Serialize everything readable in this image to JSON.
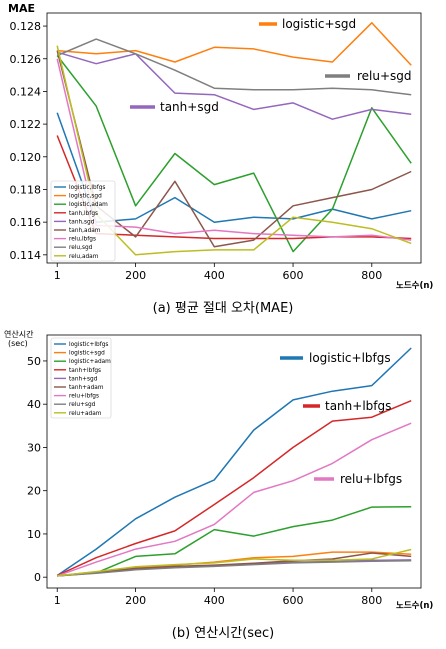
{
  "captions": {
    "a": "(a) 평균 절대 오차(MAE)",
    "b": "(b) 연산시간(sec)"
  },
  "chart_data": [
    {
      "type": "line",
      "ylabel": "MAE",
      "xlabel": "노드수(n)",
      "x": [
        1,
        100,
        200,
        300,
        400,
        500,
        600,
        700,
        800,
        900
      ],
      "xticks": [
        "1",
        "200",
        "400",
        "600",
        "800"
      ],
      "xtick_values": [
        1,
        200,
        400,
        600,
        800
      ],
      "yticks": [
        "0.114",
        "0.116",
        "0.118",
        "0.120",
        "0.122",
        "0.124",
        "0.126",
        "0.128"
      ],
      "ylim": [
        0.1135,
        0.1288
      ],
      "legend_position": "lower-left",
      "series": [
        {
          "name": "logistic,lbfgs",
          "color": "#1f77b4",
          "values": [
            0.1227,
            0.116,
            0.1162,
            0.1175,
            0.116,
            0.1163,
            0.1162,
            0.1168,
            0.1162,
            0.1167
          ]
        },
        {
          "name": "logistic,sgd",
          "color": "#ff7f0e",
          "values": [
            0.1265,
            0.1263,
            0.1265,
            0.1258,
            0.1267,
            0.1266,
            0.1261,
            0.1258,
            0.1282,
            0.1256
          ]
        },
        {
          "name": "logistic,adam",
          "color": "#2ca02c",
          "values": [
            0.1262,
            0.1231,
            0.117,
            0.1202,
            0.1183,
            0.119,
            0.1142,
            0.1168,
            0.123,
            0.1196
          ]
        },
        {
          "name": "tanh,lbfgs",
          "color": "#d62728",
          "values": [
            0.1213,
            0.1153,
            0.1152,
            0.1151,
            0.115,
            0.115,
            0.115,
            0.1151,
            0.1151,
            0.115
          ]
        },
        {
          "name": "tanh,sgd",
          "color": "#9467bd",
          "values": [
            0.1264,
            0.1257,
            0.1263,
            0.1239,
            0.1238,
            0.1229,
            0.1233,
            0.1223,
            0.1229,
            0.1226
          ]
        },
        {
          "name": "tanh,adam",
          "color": "#8c564b",
          "values": [
            0.1265,
            0.117,
            0.1151,
            0.1185,
            0.1145,
            0.1149,
            0.117,
            0.1175,
            0.118,
            0.1191
          ]
        },
        {
          "name": "relu,lbfgs",
          "color": "#e377c2",
          "values": [
            0.126,
            0.1158,
            0.1157,
            0.1153,
            0.1155,
            0.1153,
            0.1152,
            0.1151,
            0.1152,
            0.1149
          ]
        },
        {
          "name": "relu,sgd",
          "color": "#7f7f7f",
          "values": [
            0.1262,
            0.1272,
            0.1263,
            0.1253,
            0.1242,
            0.1241,
            0.1241,
            0.1242,
            0.1241,
            0.1238
          ]
        },
        {
          "name": "relu,adam",
          "color": "#bcbd22",
          "values": [
            0.1268,
            0.1165,
            0.114,
            0.1142,
            0.1143,
            0.1143,
            0.1163,
            0.116,
            0.1156,
            0.1147
          ]
        }
      ],
      "annotations": [
        {
          "text": "logistic+sgd",
          "color": "#ff7f0e"
        },
        {
          "text": "relu+sgd",
          "color": "#7f7f7f"
        },
        {
          "text": "tanh+sgd",
          "color": "#9467bd"
        }
      ]
    },
    {
      "type": "line",
      "ylabel": "연산시간 (sec)",
      "xlabel": "노드수(n)",
      "x": [
        1,
        100,
        200,
        300,
        400,
        500,
        600,
        700,
        800,
        900
      ],
      "xticks": [
        "1",
        "200",
        "400",
        "600",
        "800"
      ],
      "xtick_values": [
        1,
        200,
        400,
        600,
        800
      ],
      "yticks": [
        "0",
        "10",
        "20",
        "30",
        "40",
        "50"
      ],
      "ytick_values": [
        0,
        10,
        20,
        30,
        40,
        50
      ],
      "ylim": [
        -2.5,
        56
      ],
      "legend_position": "top-left",
      "series": [
        {
          "name": "logistic+lbfgs",
          "color": "#1f77b4",
          "values": [
            0.4,
            6.5,
            13.5,
            18.5,
            22.5,
            34,
            41,
            43,
            44.3,
            53
          ]
        },
        {
          "name": "logistic+sgd",
          "color": "#ff7f0e",
          "values": [
            0.3,
            1.2,
            2.2,
            2.8,
            3.5,
            4.5,
            4.8,
            5.8,
            5.8,
            5.3
          ]
        },
        {
          "name": "logistic+adam",
          "color": "#2ca02c",
          "values": [
            0.3,
            1.0,
            4.8,
            5.4,
            11,
            9.5,
            11.7,
            13.2,
            16.2,
            16.3
          ]
        },
        {
          "name": "tanh+lbfgs",
          "color": "#d62728",
          "values": [
            0.4,
            4.5,
            7.8,
            10.7,
            16.8,
            23,
            30,
            36.1,
            37,
            40.8
          ]
        },
        {
          "name": "tanh+sgd",
          "color": "#9467bd",
          "values": [
            0.3,
            1.0,
            1.8,
            2.3,
            2.6,
            3.1,
            3.5,
            3.6,
            3.9,
            4.0
          ]
        },
        {
          "name": "tanh+adam",
          "color": "#8c564b",
          "values": [
            0.3,
            1.2,
            2.0,
            2.5,
            2.8,
            3.2,
            3.8,
            4.2,
            5.6,
            4.8
          ]
        },
        {
          "name": "relu+lbfgs",
          "color": "#e377c2",
          "values": [
            0.3,
            3.5,
            6.5,
            8.3,
            12.2,
            19.6,
            22.3,
            26.3,
            31.8,
            35.6
          ]
        },
        {
          "name": "relu+sgd",
          "color": "#7f7f7f",
          "values": [
            0.3,
            0.9,
            1.7,
            2.2,
            2.5,
            2.9,
            3.3,
            3.5,
            3.7,
            3.8
          ]
        },
        {
          "name": "relu+adam",
          "color": "#bcbd22",
          "values": [
            0.3,
            1.3,
            2.4,
            2.9,
            3.3,
            4.2,
            3.9,
            3.9,
            4.2,
            6.4
          ]
        }
      ],
      "annotations": [
        {
          "text": "logistic+lbfgs",
          "color": "#1f77b4"
        },
        {
          "text": "tanh+lbfgs",
          "color": "#d62728"
        },
        {
          "text": "relu+lbfgs",
          "color": "#e377c2"
        }
      ]
    }
  ]
}
